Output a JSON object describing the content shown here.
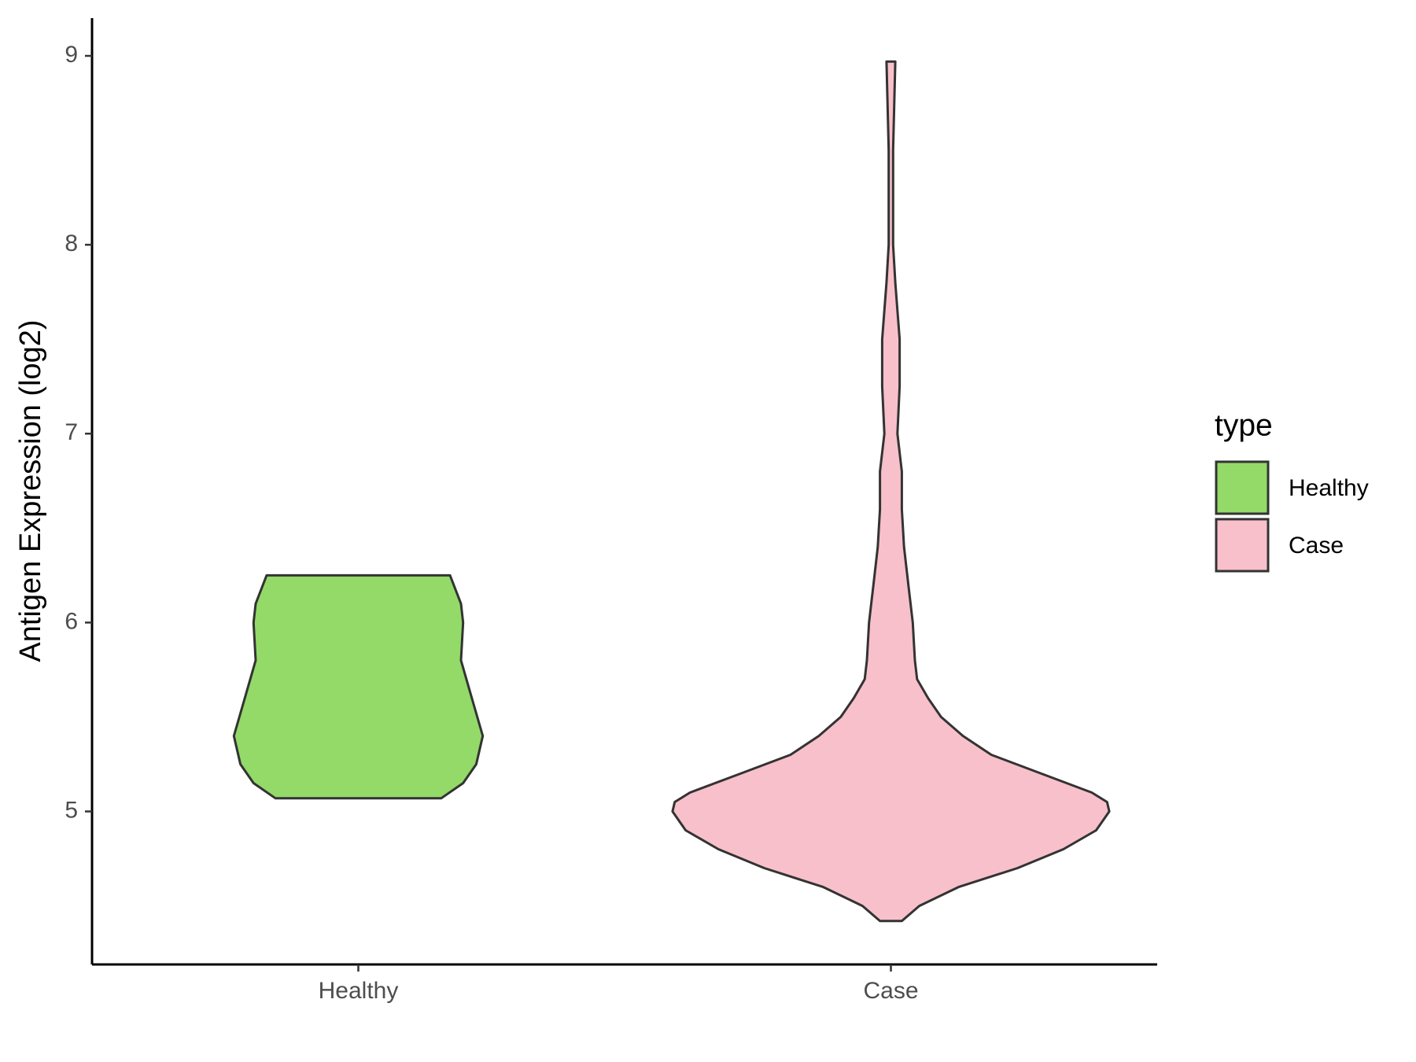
{
  "chart_data": {
    "type": "violin",
    "y_label": "Antigen Expression (log2)",
    "categories": [
      "Healthy",
      "Case"
    ],
    "legend_title": "type",
    "series": [
      {
        "name": "Healthy",
        "color": "#93da69",
        "y": [
          5.07,
          5.15,
          5.25,
          5.4,
          5.6,
          5.8,
          6.0,
          6.1,
          6.25
        ],
        "density": [
          0.38,
          0.48,
          0.54,
          0.57,
          0.52,
          0.47,
          0.48,
          0.47,
          0.42
        ]
      },
      {
        "name": "Case",
        "color": "#f8c0cb",
        "y": [
          4.42,
          4.5,
          4.6,
          4.7,
          4.8,
          4.9,
          5.0,
          5.05,
          5.1,
          5.2,
          5.3,
          5.4,
          5.5,
          5.6,
          5.7,
          5.8,
          6.0,
          6.2,
          6.4,
          6.6,
          6.8,
          7.0,
          7.25,
          7.5,
          7.8,
          8.0,
          8.5,
          8.97
        ],
        "density": [
          0.05,
          0.13,
          0.31,
          0.58,
          0.79,
          0.94,
          1.0,
          0.99,
          0.92,
          0.69,
          0.46,
          0.33,
          0.23,
          0.17,
          0.12,
          0.11,
          0.1,
          0.08,
          0.06,
          0.05,
          0.05,
          0.03,
          0.04,
          0.04,
          0.02,
          0.01,
          0.01,
          0.02
        ]
      }
    ],
    "ylim": [
      4.19,
      9.2
    ],
    "yticks": [
      5,
      6,
      7,
      8,
      9
    ],
    "legend_position": "right"
  }
}
